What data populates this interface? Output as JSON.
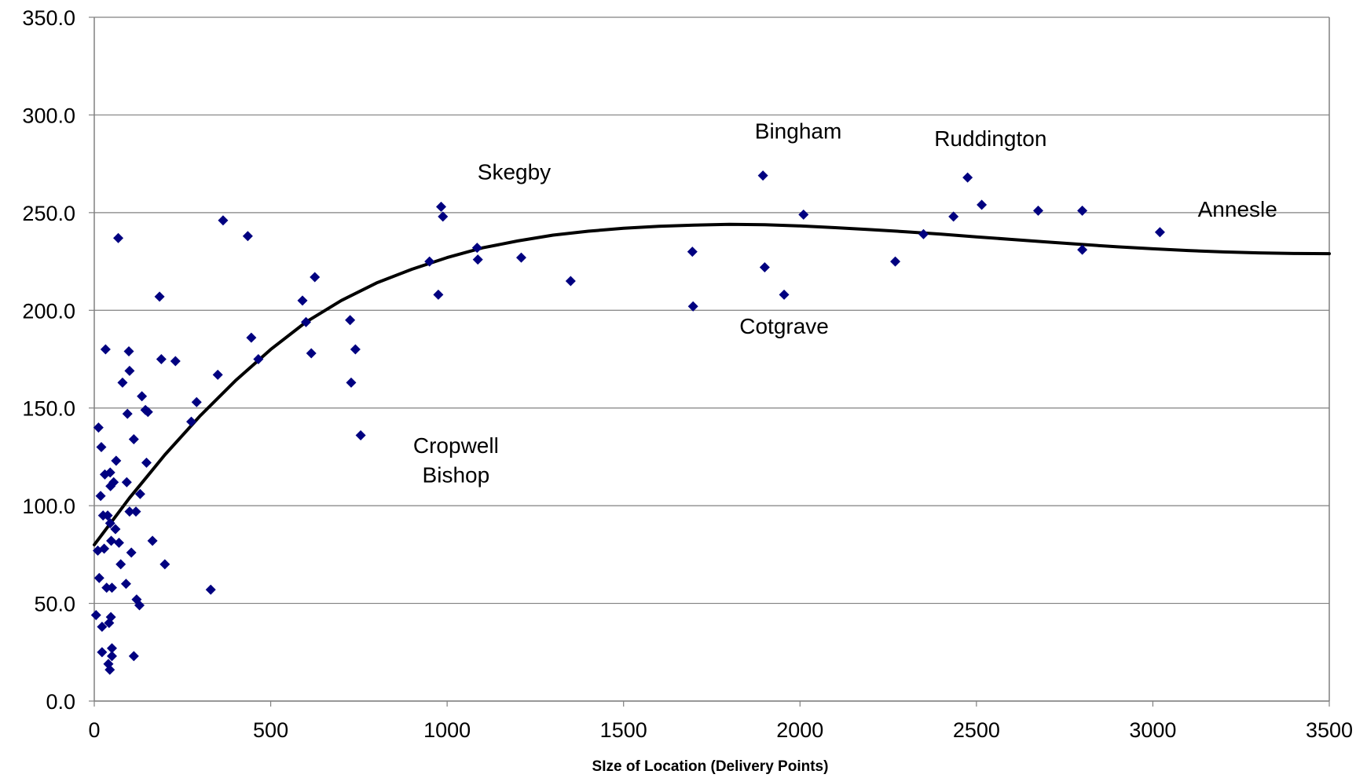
{
  "chart_data": {
    "type": "scatter",
    "title": "",
    "xlabel": "SIze of Location (Delivery Points)",
    "ylabel": "",
    "xlim": [
      0,
      3500
    ],
    "ylim": [
      0,
      350
    ],
    "x_ticks": [
      "0",
      "500",
      "1000",
      "1500",
      "2000",
      "2500",
      "3000",
      "3500"
    ],
    "y_ticks": [
      "0.0",
      "50.0",
      "100.0",
      "150.0",
      "200.0",
      "250.0",
      "300.0",
      "350.0"
    ],
    "grid": "horizontal",
    "legend": "none",
    "colors": {
      "marker": "#000080",
      "trend": "#000000",
      "grid": "#808080",
      "axis": "#808080"
    },
    "series": [
      {
        "marker": "diamond",
        "points": [
          [
            5,
            44
          ],
          [
            10,
            77
          ],
          [
            12,
            140
          ],
          [
            14,
            63
          ],
          [
            18,
            105
          ],
          [
            20,
            130
          ],
          [
            22,
            38
          ],
          [
            22,
            25
          ],
          [
            25,
            95
          ],
          [
            28,
            78
          ],
          [
            30,
            116
          ],
          [
            32,
            180
          ],
          [
            35,
            58
          ],
          [
            38,
            95
          ],
          [
            40,
            19
          ],
          [
            42,
            40
          ],
          [
            44,
            16
          ],
          [
            45,
            117
          ],
          [
            45,
            91
          ],
          [
            46,
            110
          ],
          [
            47,
            43
          ],
          [
            48,
            82
          ],
          [
            50,
            27
          ],
          [
            50,
            23
          ],
          [
            50,
            58
          ],
          [
            55,
            112
          ],
          [
            60,
            88
          ],
          [
            62,
            123
          ],
          [
            68,
            237
          ],
          [
            70,
            81
          ],
          [
            75,
            70
          ],
          [
            80,
            163
          ],
          [
            90,
            60
          ],
          [
            92,
            112
          ],
          [
            94,
            147
          ],
          [
            98,
            179
          ],
          [
            100,
            169
          ],
          [
            100,
            97
          ],
          [
            105,
            76
          ],
          [
            112,
            134
          ],
          [
            112,
            23
          ],
          [
            118,
            97
          ],
          [
            120,
            52
          ],
          [
            128,
            49
          ],
          [
            130,
            106
          ],
          [
            135,
            156
          ],
          [
            145,
            149
          ],
          [
            148,
            122
          ],
          [
            152,
            148
          ],
          [
            165,
            82
          ],
          [
            185,
            207
          ],
          [
            190,
            175
          ],
          [
            200,
            70
          ],
          [
            230,
            174
          ],
          [
            275,
            143
          ],
          [
            290,
            153
          ],
          [
            330,
            57
          ],
          [
            350,
            167
          ],
          [
            365,
            246
          ],
          [
            435,
            238
          ],
          [
            445,
            186
          ],
          [
            465,
            175
          ],
          [
            590,
            205
          ],
          [
            600,
            194
          ],
          [
            615,
            178
          ],
          [
            625,
            217
          ],
          [
            725,
            195
          ],
          [
            728,
            163
          ],
          [
            740,
            180
          ],
          [
            755,
            136
          ],
          [
            950,
            225
          ],
          [
            975,
            208
          ],
          [
            983,
            253
          ],
          [
            988,
            248
          ],
          [
            1085,
            232
          ],
          [
            1087,
            226
          ],
          [
            1210,
            227
          ],
          [
            1350,
            215
          ],
          [
            1695,
            230
          ],
          [
            1697,
            202
          ],
          [
            1895,
            269
          ],
          [
            1900,
            222
          ],
          [
            1955,
            208
          ],
          [
            2010,
            249
          ],
          [
            2270,
            225
          ],
          [
            2350,
            239
          ],
          [
            2435,
            248
          ],
          [
            2475,
            268
          ],
          [
            2515,
            254
          ],
          [
            2675,
            251
          ],
          [
            2800,
            251
          ],
          [
            2800,
            231
          ],
          [
            3020,
            240
          ]
        ]
      }
    ],
    "trendline": {
      "type": "polynomial",
      "points": [
        [
          0,
          80
        ],
        [
          50,
          92
        ],
        [
          100,
          104
        ],
        [
          150,
          115
        ],
        [
          200,
          126
        ],
        [
          300,
          146
        ],
        [
          400,
          164
        ],
        [
          500,
          180
        ],
        [
          600,
          194
        ],
        [
          700,
          205
        ],
        [
          800,
          214
        ],
        [
          900,
          221
        ],
        [
          1000,
          227
        ],
        [
          1100,
          232
        ],
        [
          1200,
          235.5
        ],
        [
          1300,
          238.5
        ],
        [
          1400,
          240.5
        ],
        [
          1500,
          242
        ],
        [
          1600,
          243
        ],
        [
          1700,
          243.6
        ],
        [
          1800,
          244
        ],
        [
          1900,
          243.8
        ],
        [
          2000,
          243.2
        ],
        [
          2100,
          242.3
        ],
        [
          2200,
          241.3
        ],
        [
          2300,
          240.2
        ],
        [
          2400,
          239
        ],
        [
          2500,
          237.6
        ],
        [
          2600,
          236.3
        ],
        [
          2700,
          235
        ],
        [
          2800,
          233.7
        ],
        [
          2900,
          232.5
        ],
        [
          3000,
          231.5
        ],
        [
          3100,
          230.6
        ],
        [
          3200,
          229.9
        ],
        [
          3300,
          229.4
        ],
        [
          3400,
          229.1
        ],
        [
          3500,
          229
        ]
      ]
    },
    "annotations": [
      {
        "text": "Skegby",
        "x": 1190,
        "y": 267
      },
      {
        "text": "Bingham",
        "x": 1995,
        "y": 288
      },
      {
        "text": "Ruddington",
        "x": 2540,
        "y": 284
      },
      {
        "text": "Annesle",
        "x": 3240,
        "y": 248
      },
      {
        "text": "Cotgrave",
        "x": 1955,
        "y": 188
      },
      {
        "text": "Cropwell",
        "x": 1025,
        "y": 127
      },
      {
        "text": "Bishop",
        "x": 1025,
        "y": 112
      }
    ]
  }
}
